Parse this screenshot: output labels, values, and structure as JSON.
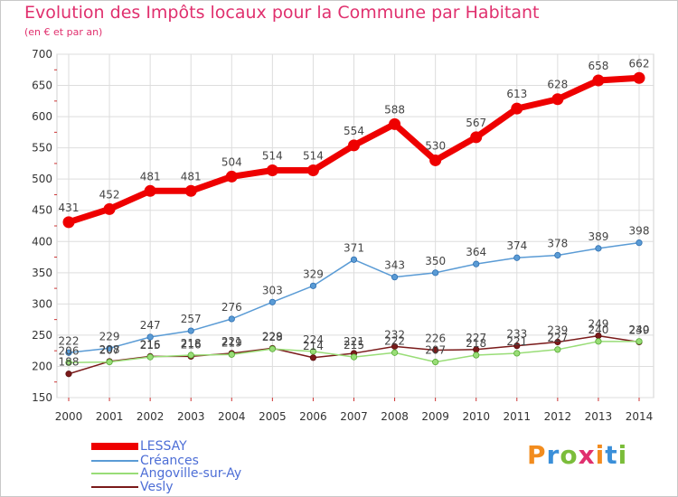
{
  "title": "Evolution des Impôts locaux pour la Commune par Habitant",
  "subtitle": "(en € et par an)",
  "logo": {
    "text": "Proxiti",
    "colors": [
      "#f28c1e",
      "#3a8fd9",
      "#7bbd3a",
      "#e0306e"
    ]
  },
  "chart_data": {
    "type": "line",
    "x": [
      2000,
      2001,
      2002,
      2003,
      2004,
      2005,
      2006,
      2007,
      2008,
      2009,
      2010,
      2011,
      2012,
      2013,
      2014
    ],
    "ylim": [
      150,
      700
    ],
    "yticks": [
      150,
      200,
      250,
      300,
      350,
      400,
      450,
      500,
      550,
      600,
      650,
      700
    ],
    "grid": true,
    "legend_position": "bottom-left",
    "series": [
      {
        "name": "LESSAY",
        "color": "#ee0000",
        "values": [
          431,
          452,
          481,
          481,
          504,
          514,
          514,
          554,
          588,
          530,
          567,
          613,
          628,
          658,
          662
        ]
      },
      {
        "name": "Créances",
        "color": "#5a9bd5",
        "values": [
          222,
          229,
          247,
          257,
          276,
          303,
          329,
          371,
          343,
          350,
          364,
          374,
          378,
          389,
          398
        ]
      },
      {
        "name": "Angoville-sur-Ay",
        "color": "#99dd77",
        "values": [
          206,
          207,
          215,
          218,
          219,
          228,
          224,
          215,
          222,
          207,
          218,
          221,
          227,
          240,
          240
        ]
      },
      {
        "name": "Vesly",
        "color": "#7a1a1a",
        "values": [
          188,
          208,
          216,
          216,
          221,
          229,
          214,
          221,
          232,
          226,
          227,
          233,
          239,
          249,
          239
        ]
      }
    ]
  }
}
